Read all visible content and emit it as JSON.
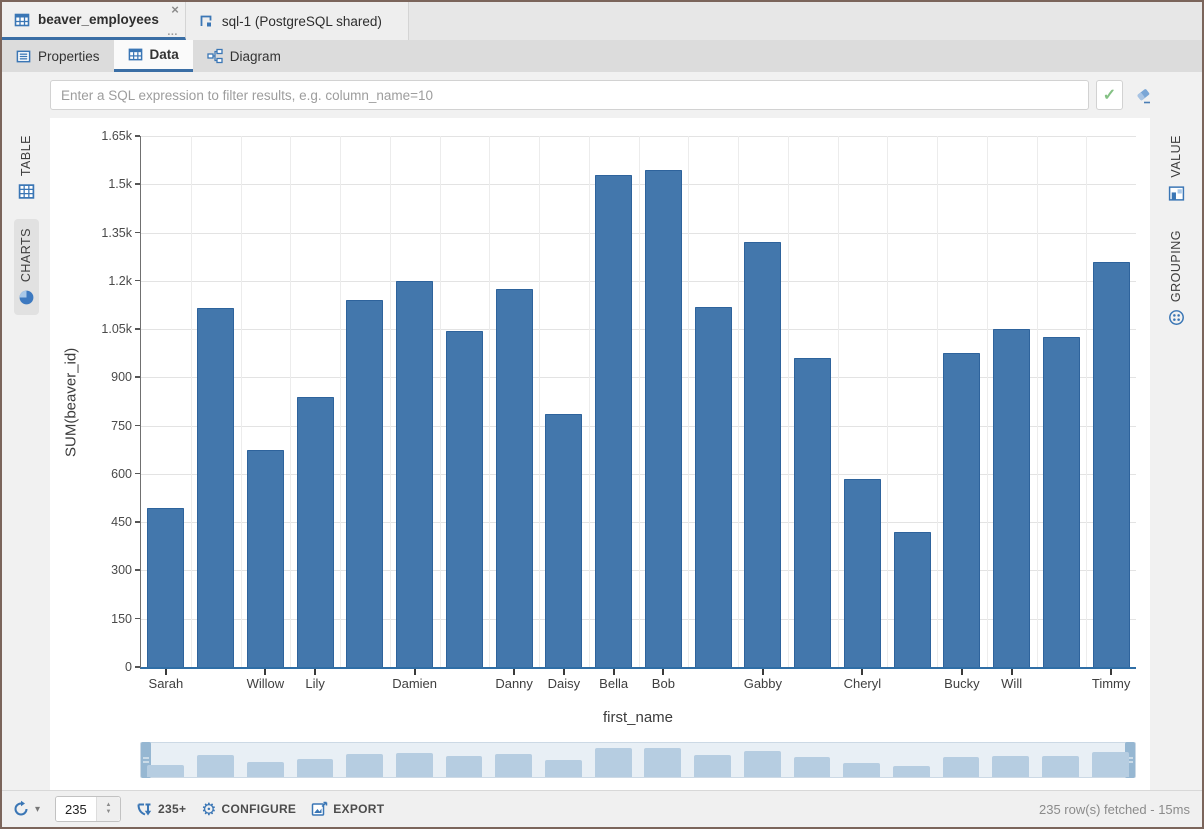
{
  "colors": {
    "accent_blue": "#3a76b5",
    "bar_fill": "#4377ac",
    "bar_border": "#2e639c",
    "axis_line": "#2f6ea6",
    "navigator_bar": "#b6cde1",
    "navigator_handle": "#96b7d2",
    "success_green": "#84c184",
    "window_border": "#7b655b"
  },
  "editor_tabs": {
    "tabs": [
      {
        "label": "beaver_employees",
        "active": true,
        "icon": "table-icon",
        "close_glyph": "×",
        "overflow_glyph": "…"
      },
      {
        "label": "sql-1 (PostgreSQL shared)",
        "active": false,
        "icon": "sql-script-icon"
      }
    ]
  },
  "view_tabs": {
    "tabs": [
      {
        "label": "Properties",
        "icon": "properties-icon",
        "active": false
      },
      {
        "label": "Data",
        "icon": "data-grid-icon",
        "active": true
      },
      {
        "label": "Diagram",
        "icon": "diagram-icon",
        "active": false
      }
    ]
  },
  "filter_bar": {
    "placeholder": "Enter a SQL expression to filter results, e.g. column_name=10",
    "value": "",
    "apply_glyph": "✓"
  },
  "left_panel": {
    "tabs": [
      {
        "label": "TABLE",
        "icon": "table-grid-icon",
        "active": false
      },
      {
        "label": "CHARTS",
        "icon": "pie-chart-icon",
        "active": true
      }
    ]
  },
  "right_panel": {
    "tabs": [
      {
        "label": "VALUE",
        "icon": "value-chart-icon",
        "active": false
      },
      {
        "label": "GROUPING",
        "icon": "grouping-icon",
        "active": false
      }
    ]
  },
  "chart_data": {
    "type": "bar",
    "title": "",
    "xlabel": "first_name",
    "ylabel": "SUM(beaver_id)",
    "ylim": [
      0,
      1650
    ],
    "ytick_step": 150,
    "yticks": [
      "1.65k",
      "1.5k",
      "1.35k",
      "1.2k",
      "1.05k",
      "900",
      "750",
      "600",
      "450",
      "300",
      "150",
      "0"
    ],
    "grid": true,
    "legend_position": "none",
    "categories": [
      "Sarah",
      "",
      "Willow",
      "Lily",
      "",
      "Damien",
      "",
      "Danny",
      "Daisy",
      "Bella",
      "Bob",
      "",
      "Gabby",
      "",
      "Cheryl",
      "",
      "Bucky",
      "Will",
      "",
      "Timmy"
    ],
    "values": [
      495,
      1115,
      675,
      840,
      1140,
      1200,
      1045,
      1175,
      785,
      1530,
      1545,
      1120,
      1320,
      960,
      585,
      420,
      975,
      1050,
      1025,
      1260
    ],
    "bar_color": "#4377ac",
    "has_navigator": true
  },
  "status_bar": {
    "segment_size_value": "235",
    "fetch_more_label": "235+",
    "configure_label": "CONFIGURE",
    "export_label": "EXPORT",
    "status_text": "235 row(s) fetched - 15ms"
  }
}
